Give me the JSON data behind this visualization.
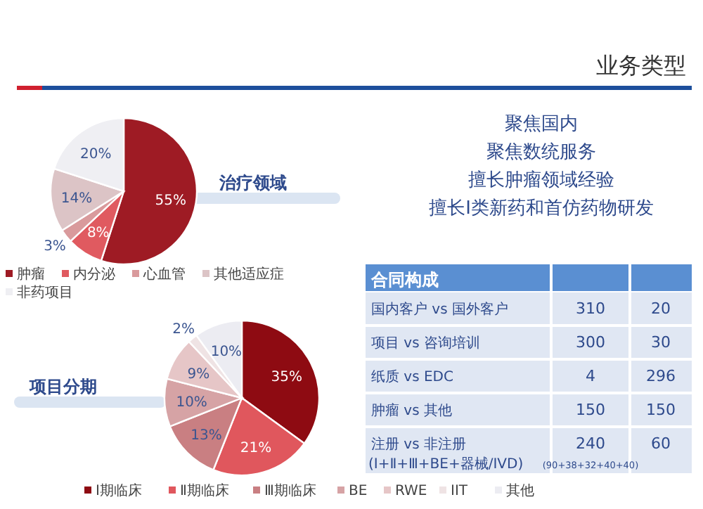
{
  "chart_data": [
    {
      "type": "other",
      "title": "业务类型",
      "annotations": [
        "聚焦国内",
        "聚焦数统服务",
        "擅长肿瘤领域经验",
        "擅长I类新药和首仿药物研发"
      ]
    },
    {
      "type": "pie",
      "title": "治疗领域",
      "categories": [
        "肿瘤",
        "内分泌",
        "心血管",
        "其他适应症",
        "非药项目"
      ],
      "values": [
        55,
        8,
        3,
        14,
        20
      ],
      "value_labels": [
        "55%",
        "8%",
        "3%",
        "14%",
        "20%"
      ],
      "colors": [
        "#9e1b24",
        "#e05a60",
        "#d99a9c",
        "#dcc4c6",
        "#efeff3"
      ],
      "legend": "bottom"
    },
    {
      "type": "pie",
      "title": "项目分期",
      "categories": [
        "Ⅰ期临床",
        "Ⅱ期临床",
        "Ⅲ期临床",
        "BE",
        "RWE",
        "IIT",
        "其他"
      ],
      "values": [
        35,
        21,
        13,
        10,
        9,
        2,
        10
      ],
      "value_labels": [
        "35%",
        "21%",
        "13%",
        "10%",
        "9%",
        "2%",
        "10%"
      ],
      "colors": [
        "#8e0b12",
        "#e0575d",
        "#c97f82",
        "#d6a3a5",
        "#e6c6c7",
        "#efe3e4",
        "#ececf2"
      ],
      "legend": "bottom"
    },
    {
      "type": "other",
      "title": "合同构成",
      "categories": [
        "国内客户 vs 国外客户",
        "项目 vs 咨询培训",
        "纸质 vs EDC",
        "肿瘤 vs 其他",
        "注册 vs 非注册"
      ],
      "series": [
        {
          "values": [
            310,
            300,
            4,
            150,
            240
          ]
        },
        {
          "values": [
            20,
            30,
            296,
            150,
            60
          ]
        }
      ],
      "annotations": [
        "(Ⅰ+Ⅱ+Ⅲ+BE+器械/IVD)",
        "(90+38+32+40+40)"
      ],
      "data_labels": true
    }
  ]
}
